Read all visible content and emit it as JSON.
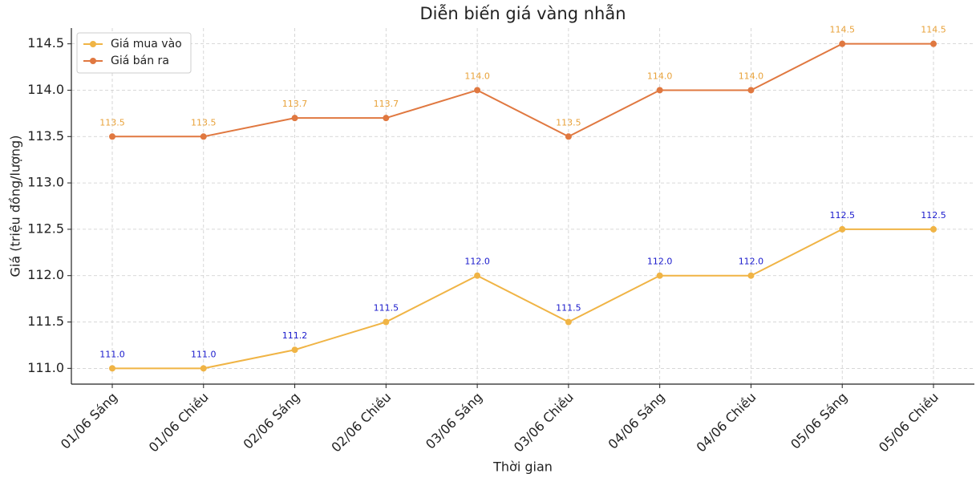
{
  "chart_data": {
    "type": "line",
    "title": "Diễn biến giá vàng nhẫn",
    "x_label": "Thời gian",
    "y_label": "Giá (triệu đồng/lượng)",
    "categories": [
      "01/06 Sáng",
      "01/06 Chiều",
      "02/06 Sáng",
      "02/06 Chiều",
      "03/06 Sáng",
      "03/06 Chiều",
      "04/06 Sáng",
      "04/06 Chiều",
      "05/06 Sáng",
      "05/06 Chiều"
    ],
    "series": [
      {
        "name": "Giá mua vào",
        "color": "#f0b445",
        "label_color": "#1a1acc",
        "values": [
          111.0,
          111.0,
          111.2,
          111.5,
          112.0,
          111.5,
          112.0,
          112.0,
          112.5,
          112.5
        ],
        "value_labels": [
          "111.0",
          "111.0",
          "111.2",
          "111.5",
          "112.0",
          "111.5",
          "112.0",
          "112.0",
          "112.5",
          "112.5"
        ]
      },
      {
        "name": "Giá bán ra",
        "color": "#e07840",
        "label_color": "#e8a23a",
        "values": [
          113.5,
          113.5,
          113.7,
          113.7,
          114.0,
          113.5,
          114.0,
          114.0,
          114.5,
          114.5
        ],
        "value_labels": [
          "113.5",
          "113.5",
          "113.7",
          "113.7",
          "114.0",
          "113.5",
          "114.0",
          "114.0",
          "114.5",
          "114.5"
        ]
      }
    ],
    "ylim": [
      110.83,
      114.67
    ],
    "yticks": [
      {
        "value": 111,
        "label": "111.0"
      },
      111.5,
      {
        "value": 112,
        "label": "112.0"
      },
      112.5,
      {
        "value": 113,
        "label": "113.0"
      },
      113.5,
      {
        "value": 114,
        "label": "114.0"
      },
      114.5
    ],
    "grid": true,
    "legend": "upper left"
  }
}
